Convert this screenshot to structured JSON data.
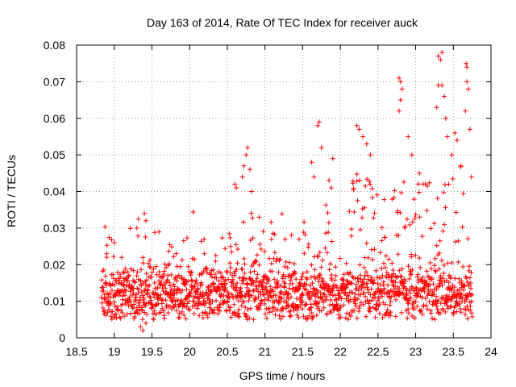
{
  "chart_data": {
    "type": "scatter",
    "title": "Day 163 of 2014, Rate Of TEC Index for receiver auck",
    "xlabel": "GPS time / hours",
    "ylabel": "ROTI / TECUs",
    "xlim": [
      18.5,
      24
    ],
    "ylim": [
      0,
      0.08
    ],
    "x_ticks": [
      "18.5",
      "19",
      "19.5",
      "20",
      "20.5",
      "21",
      "21.5",
      "22",
      "22.5",
      "23",
      "23.5",
      "24"
    ],
    "y_ticks": [
      "0",
      "0.01",
      "0.02",
      "0.03",
      "0.04",
      "0.05",
      "0.06",
      "0.07",
      "0.08"
    ],
    "grid": true,
    "marker": "+",
    "color": "#ff0000",
    "x_range_observed": [
      18.83,
      23.75
    ],
    "baseline_level": 0.012,
    "series": [
      {
        "name": "ROTI",
        "highlight_points": [
          [
            19.35,
            0.003
          ],
          [
            19.38,
            0.002
          ],
          [
            19.42,
            0.004
          ],
          [
            19.4,
            0.034
          ],
          [
            19.42,
            0.032
          ],
          [
            19.3,
            0.03
          ],
          [
            18.9,
            0.022
          ],
          [
            19.0,
            0.026
          ],
          [
            20.6,
            0.042
          ],
          [
            20.62,
            0.041
          ],
          [
            20.7,
            0.044
          ],
          [
            20.72,
            0.047
          ],
          [
            20.75,
            0.05
          ],
          [
            20.77,
            0.052
          ],
          [
            20.8,
            0.046
          ],
          [
            20.82,
            0.04
          ],
          [
            21.62,
            0.048
          ],
          [
            21.65,
            0.044
          ],
          [
            21.7,
            0.058
          ],
          [
            21.72,
            0.059
          ],
          [
            21.75,
            0.052
          ],
          [
            21.85,
            0.043
          ],
          [
            21.88,
            0.041
          ],
          [
            21.9,
            0.049
          ],
          [
            22.22,
            0.058
          ],
          [
            22.25,
            0.057
          ],
          [
            22.3,
            0.055
          ],
          [
            22.35,
            0.053
          ],
          [
            22.4,
            0.05
          ],
          [
            22.78,
            0.071
          ],
          [
            22.8,
            0.07
          ],
          [
            22.82,
            0.068
          ],
          [
            22.8,
            0.065
          ],
          [
            22.78,
            0.062
          ],
          [
            22.9,
            0.055
          ],
          [
            22.95,
            0.05
          ],
          [
            23.05,
            0.045
          ],
          [
            23.1,
            0.042
          ],
          [
            23.3,
            0.077
          ],
          [
            23.35,
            0.078
          ],
          [
            23.33,
            0.076
          ],
          [
            23.3,
            0.069
          ],
          [
            23.35,
            0.069
          ],
          [
            23.38,
            0.066
          ],
          [
            23.28,
            0.063
          ],
          [
            23.4,
            0.06
          ],
          [
            23.42,
            0.055
          ],
          [
            23.48,
            0.05
          ],
          [
            23.52,
            0.056
          ],
          [
            23.55,
            0.054
          ],
          [
            23.6,
            0.047
          ],
          [
            23.67,
            0.075
          ],
          [
            23.68,
            0.074
          ],
          [
            23.68,
            0.07
          ],
          [
            23.7,
            0.068
          ],
          [
            23.66,
            0.062
          ],
          [
            23.72,
            0.057
          ],
          [
            23.74,
            0.044
          ]
        ]
      }
    ]
  }
}
